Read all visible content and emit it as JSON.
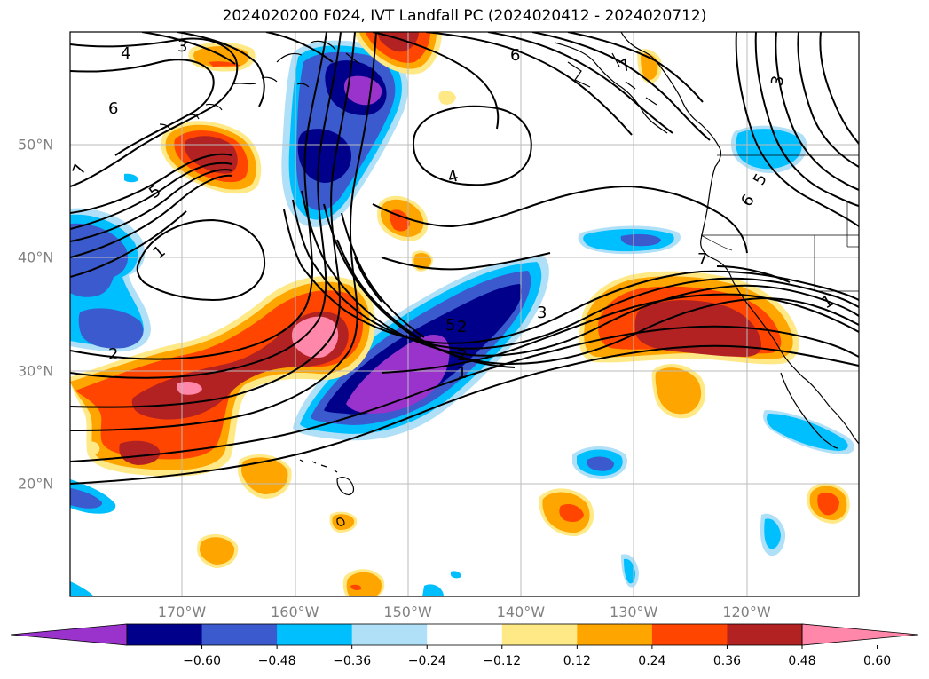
{
  "title": "2024020200 F024, IVT Landfall PC (2024020412 - 2024020712)",
  "latitudes": [
    {
      "label": "50°N",
      "lat": 50
    },
    {
      "label": "40°N",
      "lat": 40
    },
    {
      "label": "30°N",
      "lat": 30
    },
    {
      "label": "20°N",
      "lat": 20
    }
  ],
  "longitudes": [
    {
      "label": "170°W",
      "lon": -170
    },
    {
      "label": "160°W",
      "lon": -160
    },
    {
      "label": "150°W",
      "lon": -150
    },
    {
      "label": "140°W",
      "lon": -140
    },
    {
      "label": "130°W",
      "lon": -130
    },
    {
      "label": "120°W",
      "lon": -120
    }
  ],
  "colorbar": {
    "colors": [
      "#9933cc",
      "#00008b",
      "#3a5acd",
      "#00bfff",
      "#b0e0f8",
      "#ffffff",
      "#ffe987",
      "#ffa500",
      "#ff4500",
      "#b22222",
      "#ff88aa"
    ],
    "ticks": [
      "−0.60",
      "−0.48",
      "−0.36",
      "−0.24",
      "−0.12",
      "0.12",
      "0.24",
      "0.36",
      "0.48",
      "0.60"
    ]
  },
  "contour_labels": [
    "4",
    "3",
    "6",
    "5",
    "1",
    "2",
    "4",
    "6",
    "7",
    "3",
    "5",
    "6",
    "7",
    "1",
    "5",
    "2",
    "1",
    "3",
    "2",
    "7"
  ]
}
